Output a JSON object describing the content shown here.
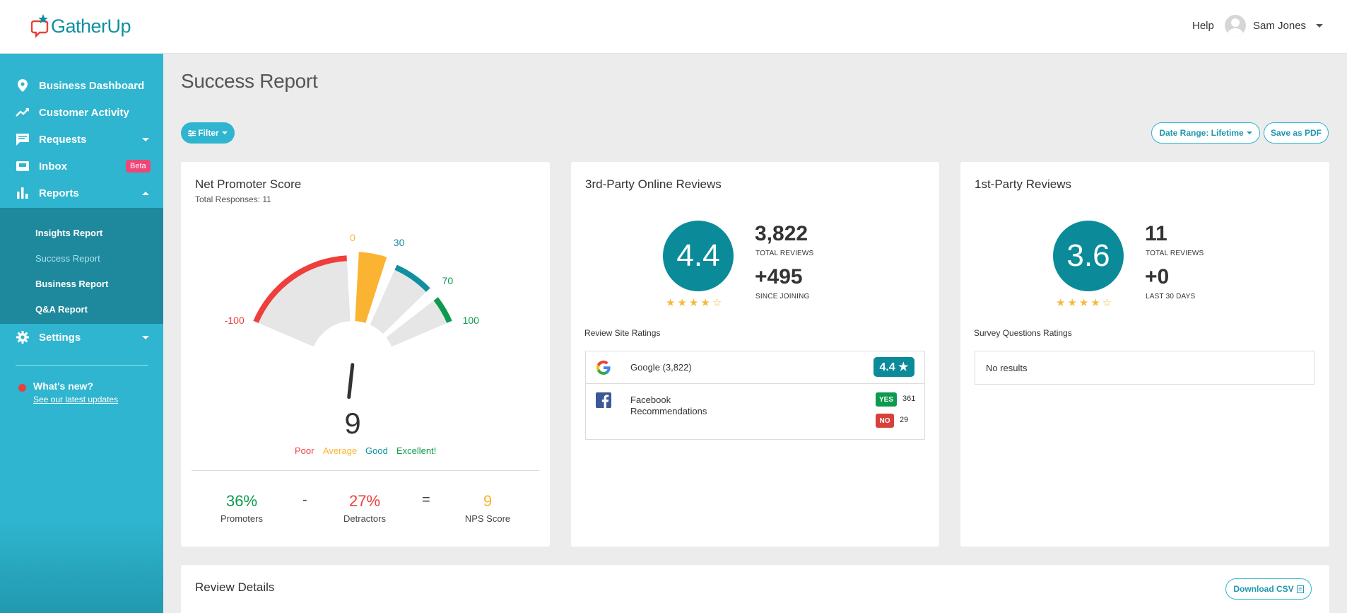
{
  "header": {
    "logo_text": "GatherUp",
    "help": "Help",
    "user_name": "Sam Jones"
  },
  "sidebar": {
    "items": [
      {
        "label": "Business Dashboard",
        "icon": "map-pin-icon"
      },
      {
        "label": "Customer Activity",
        "icon": "trend-icon"
      },
      {
        "label": "Requests",
        "icon": "chat-icon"
      },
      {
        "label": "Inbox",
        "icon": "inbox-icon",
        "badge": "Beta"
      },
      {
        "label": "Reports",
        "icon": "bar-chart-icon"
      }
    ],
    "reports_submenu": [
      {
        "label": "Insights Report"
      },
      {
        "label": "Success Report"
      },
      {
        "label": "Business Report"
      },
      {
        "label": "Q&A Report"
      }
    ],
    "settings": {
      "label": "Settings",
      "icon": "gear-icon"
    },
    "whats_new": {
      "title": "What's new?",
      "link": "See our latest updates"
    }
  },
  "page": {
    "title": "Success Report",
    "filter_label": "Filter",
    "date_range_label": "Date Range: Lifetime",
    "save_pdf_label": "Save as PDF"
  },
  "nps": {
    "title": "Net Promoter Score",
    "subtitle": "Total Responses: 11",
    "score": 9,
    "score_text": "9",
    "gauge_labels": {
      "m100": "-100",
      "zero": "0",
      "thirty": "30",
      "seventy": "70",
      "hundred": "100"
    },
    "legend": [
      "Poor",
      "Average",
      "Good",
      "Excellent!"
    ],
    "promoters_value": "36%",
    "promoters_label": "Promoters",
    "detractors_value": "27%",
    "detractors_label": "Detractors",
    "nps_value": "9",
    "nps_label": "NPS Score",
    "minus": "-",
    "equals": "=",
    "colors": {
      "poor": "#ee3f3b",
      "average": "#fbb431",
      "good": "#0f8fa0",
      "excellent": "#0d9a4f"
    }
  },
  "third_party": {
    "title": "3rd-Party Online Reviews",
    "rating": "4.4",
    "stars": "★★★★☆",
    "total_reviews": "3,822",
    "total_reviews_label": "TOTAL REVIEWS",
    "since_joining": "+495",
    "since_joining_label": "SINCE JOINING",
    "section_label": "Review Site Ratings",
    "sites": [
      {
        "name": "Google (3,822)",
        "icon": "google-icon",
        "rating": "4.4 ★"
      },
      {
        "name": "Facebook Recommendations",
        "icon": "facebook-icon",
        "yes_label": "YES",
        "yes_count": "361",
        "no_label": "NO",
        "no_count": "29"
      }
    ]
  },
  "first_party": {
    "title": "1st-Party Reviews",
    "rating": "3.6",
    "stars": "★★★★☆",
    "total_reviews": "11",
    "total_reviews_label": "TOTAL REVIEWS",
    "last_30": "+0",
    "last_30_label": "LAST 30 DAYS",
    "section_label": "Survey Questions Ratings",
    "no_results": "No results"
  },
  "review_details": {
    "title": "Review Details",
    "download_label": "Download CSV"
  }
}
